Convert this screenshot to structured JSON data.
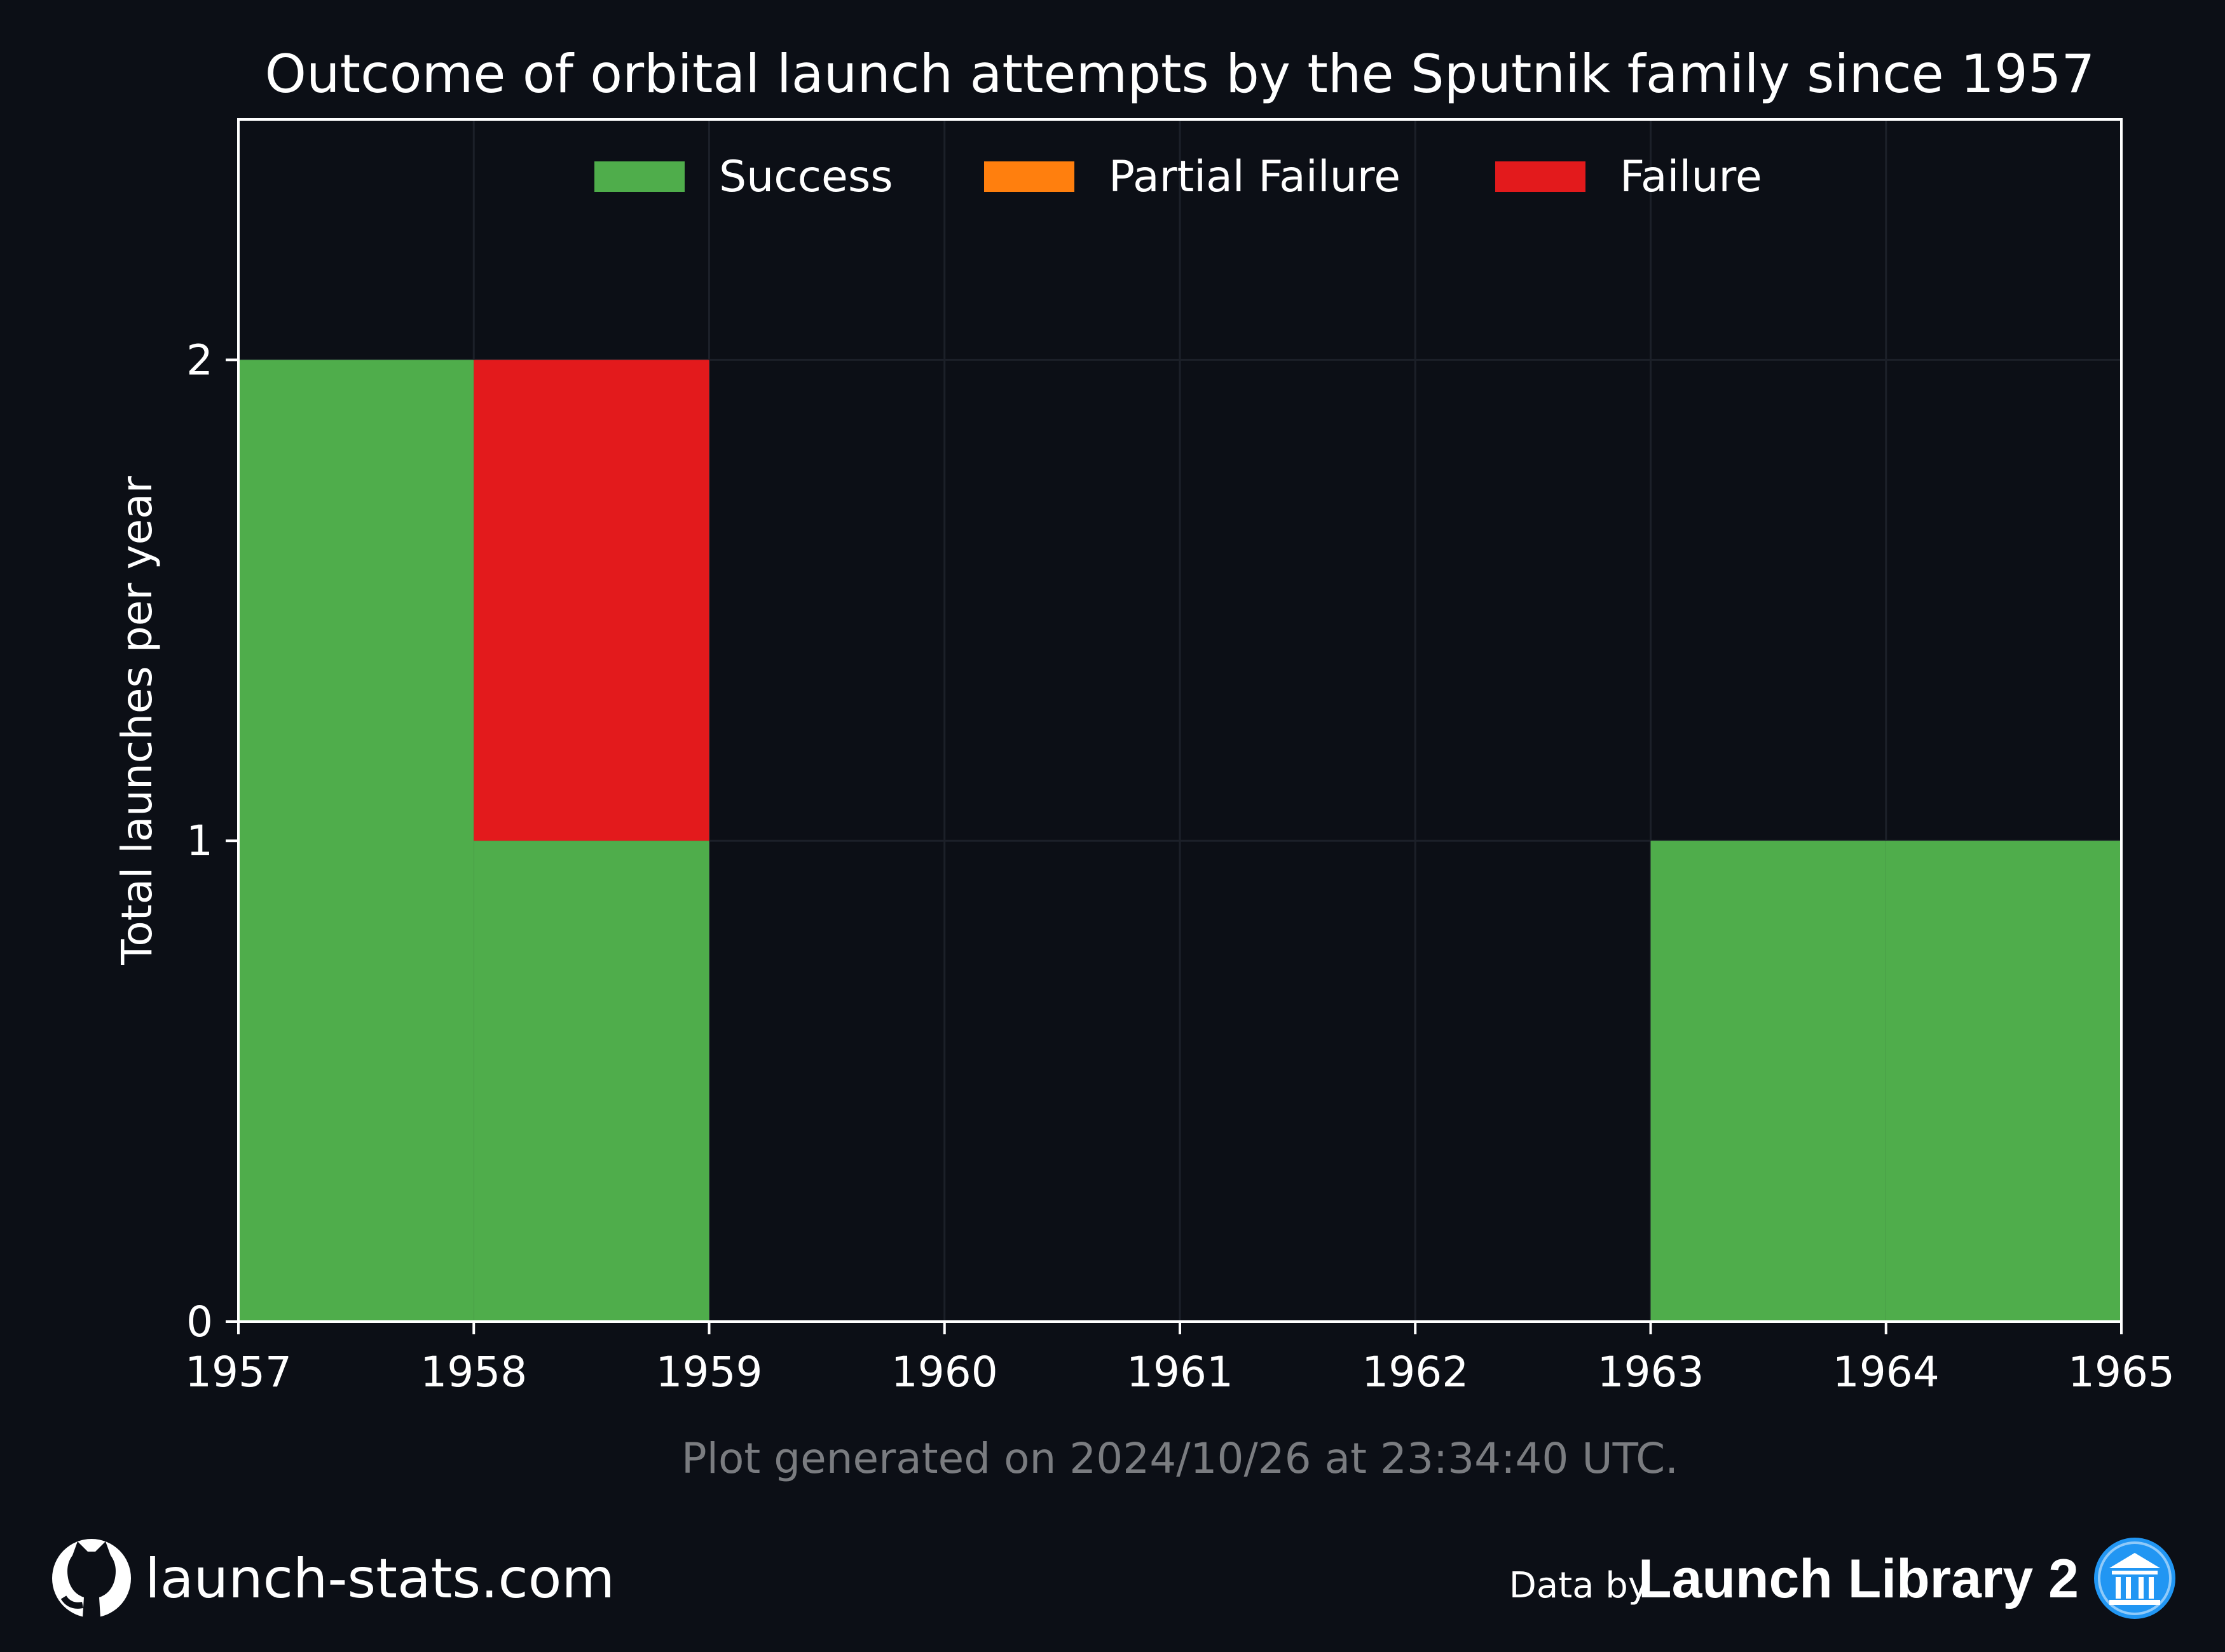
{
  "chart_data": {
    "type": "bar",
    "stacked": true,
    "title": "Outcome of orbital launch attempts by the Sputnik family since 1957",
    "xlabel": "",
    "ylabel": "Total launches per year",
    "categories": [
      1957,
      1958,
      1959,
      1960,
      1961,
      1962,
      1963,
      1964
    ],
    "x_ticks": [
      "1957",
      "1958",
      "1959",
      "1960",
      "1961",
      "1962",
      "1963",
      "1964",
      "1965"
    ],
    "y_ticks": [
      "0",
      "1",
      "2"
    ],
    "xlim": [
      1957,
      1965
    ],
    "ylim": [
      0,
      2.5
    ],
    "grid": true,
    "legend_position": "top-center",
    "series": [
      {
        "name": "Success",
        "color": "#4fad4b",
        "values": [
          2,
          1,
          0,
          0,
          0,
          0,
          1,
          1
        ]
      },
      {
        "name": "Partial Failure",
        "color": "#ff7f0e",
        "values": [
          0,
          0,
          0,
          0,
          0,
          0,
          0,
          0
        ]
      },
      {
        "name": "Failure",
        "color": "#e31a1c",
        "values": [
          0,
          1,
          0,
          0,
          0,
          0,
          0,
          0
        ]
      }
    ]
  },
  "footer": {
    "generated": "Plot generated on 2024/10/26 at 23:34:40 UTC.",
    "site": "launch-stats.com",
    "data_by": "Data by",
    "source": "Launch Library 2"
  },
  "icons": {
    "github": "github-icon",
    "launch_library": "launch-library-logo-icon"
  }
}
